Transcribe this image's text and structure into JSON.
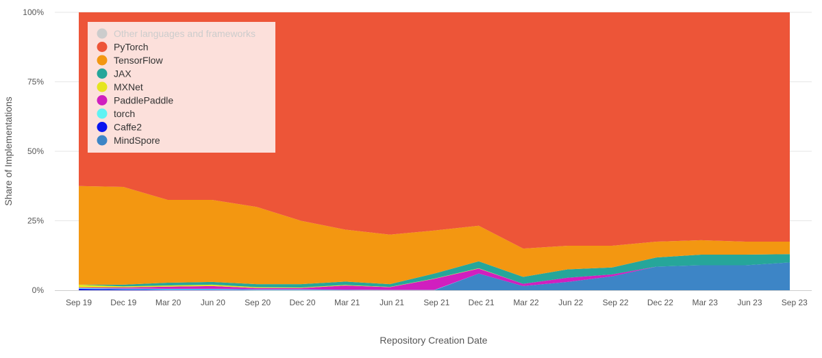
{
  "chart_data": {
    "type": "area",
    "stacking": "percent",
    "title": "",
    "xlabel": "Repository Creation Date",
    "ylabel": "Share of Implementations",
    "ylim": [
      0,
      100
    ],
    "y_ticks": [
      "0%",
      "25%",
      "50%",
      "75%",
      "100%"
    ],
    "y_tick_values": [
      0,
      25,
      50,
      75,
      100
    ],
    "categories": [
      "Sep 19",
      "Dec 19",
      "Mar 20",
      "Jun 20",
      "Sep 20",
      "Dec 20",
      "Mar 21",
      "Jun 21",
      "Sep 21",
      "Dec 21",
      "Mar 22",
      "Jun 22",
      "Sep 22",
      "Dec 22",
      "Mar 23",
      "Jun 23",
      "Sep 23"
    ],
    "legend_position": "top-left",
    "series": [
      {
        "name": "MindSpore",
        "color": "#3d85c6",
        "values": [
          0,
          0,
          0,
          0,
          0,
          0,
          0,
          0,
          0,
          6,
          1.5,
          3,
          5,
          8.5,
          9,
          9,
          10
        ]
      },
      {
        "name": "Caffe2",
        "color": "#0a14ef",
        "values": [
          0.5,
          0.3,
          0.2,
          0.2,
          0.1,
          0.1,
          0.1,
          0,
          0,
          0,
          0,
          0,
          0,
          0,
          0,
          0,
          0
        ]
      },
      {
        "name": "torch",
        "color": "#5ff3f3",
        "values": [
          0.3,
          0.3,
          0.3,
          0.3,
          0.2,
          0.2,
          0.1,
          0.1,
          0.1,
          0,
          0,
          0,
          0,
          0,
          0,
          0,
          0
        ]
      },
      {
        "name": "PaddlePaddle",
        "color": "#d01fbf",
        "values": [
          0.2,
          0.4,
          0.8,
          1,
          0.5,
          0.5,
          1.5,
          1,
          4,
          1.8,
          0.8,
          1.5,
          0.7,
          0,
          0,
          0,
          0
        ]
      },
      {
        "name": "MXNet",
        "color": "#e5e520",
        "values": [
          1,
          0.4,
          0.4,
          0.5,
          0.3,
          0.2,
          0.2,
          0.1,
          0.1,
          0.1,
          0,
          0,
          0,
          0,
          0,
          0,
          0
        ]
      },
      {
        "name": "JAX",
        "color": "#26a69a",
        "values": [
          0,
          0.6,
          1,
          1,
          1.1,
          1.2,
          1.2,
          1,
          1.8,
          2.5,
          2.5,
          3,
          2.5,
          3.3,
          3.8,
          3.8,
          3
        ]
      },
      {
        "name": "TensorFlow",
        "color": "#f39711",
        "values": [
          35.5,
          35.2,
          29.8,
          29.5,
          27.8,
          22.8,
          18.7,
          17.8,
          15.5,
          12.8,
          10.2,
          8.5,
          7.8,
          5.7,
          5.2,
          4.7,
          4.5
        ]
      },
      {
        "name": "PyTorch",
        "color": "#ed5538",
        "values": [
          62.5,
          62.8,
          67.5,
          67.5,
          70,
          75,
          78.2,
          80,
          78.5,
          76.8,
          85,
          84,
          84,
          82.5,
          82,
          82.5,
          82.5
        ]
      },
      {
        "name": "Other languages and frameworks",
        "color": "#cccccc",
        "values": [
          0,
          0,
          0,
          0,
          0,
          0,
          0,
          0,
          0,
          0,
          0,
          0,
          0,
          0,
          0,
          0,
          0
        ]
      }
    ],
    "legend_entries": [
      {
        "name": "Other languages and frameworks",
        "color": "#cccccc",
        "muted": true
      },
      {
        "name": "PyTorch",
        "color": "#ed5538",
        "muted": false
      },
      {
        "name": "TensorFlow",
        "color": "#f39711",
        "muted": false
      },
      {
        "name": "JAX",
        "color": "#26a69a",
        "muted": false
      },
      {
        "name": "MXNet",
        "color": "#e5e520",
        "muted": false
      },
      {
        "name": "PaddlePaddle",
        "color": "#d01fbf",
        "muted": false
      },
      {
        "name": "torch",
        "color": "#5ff3f3",
        "muted": false
      },
      {
        "name": "Caffe2",
        "color": "#0a14ef",
        "muted": false
      },
      {
        "name": "MindSpore",
        "color": "#3d85c6",
        "muted": false
      }
    ]
  }
}
